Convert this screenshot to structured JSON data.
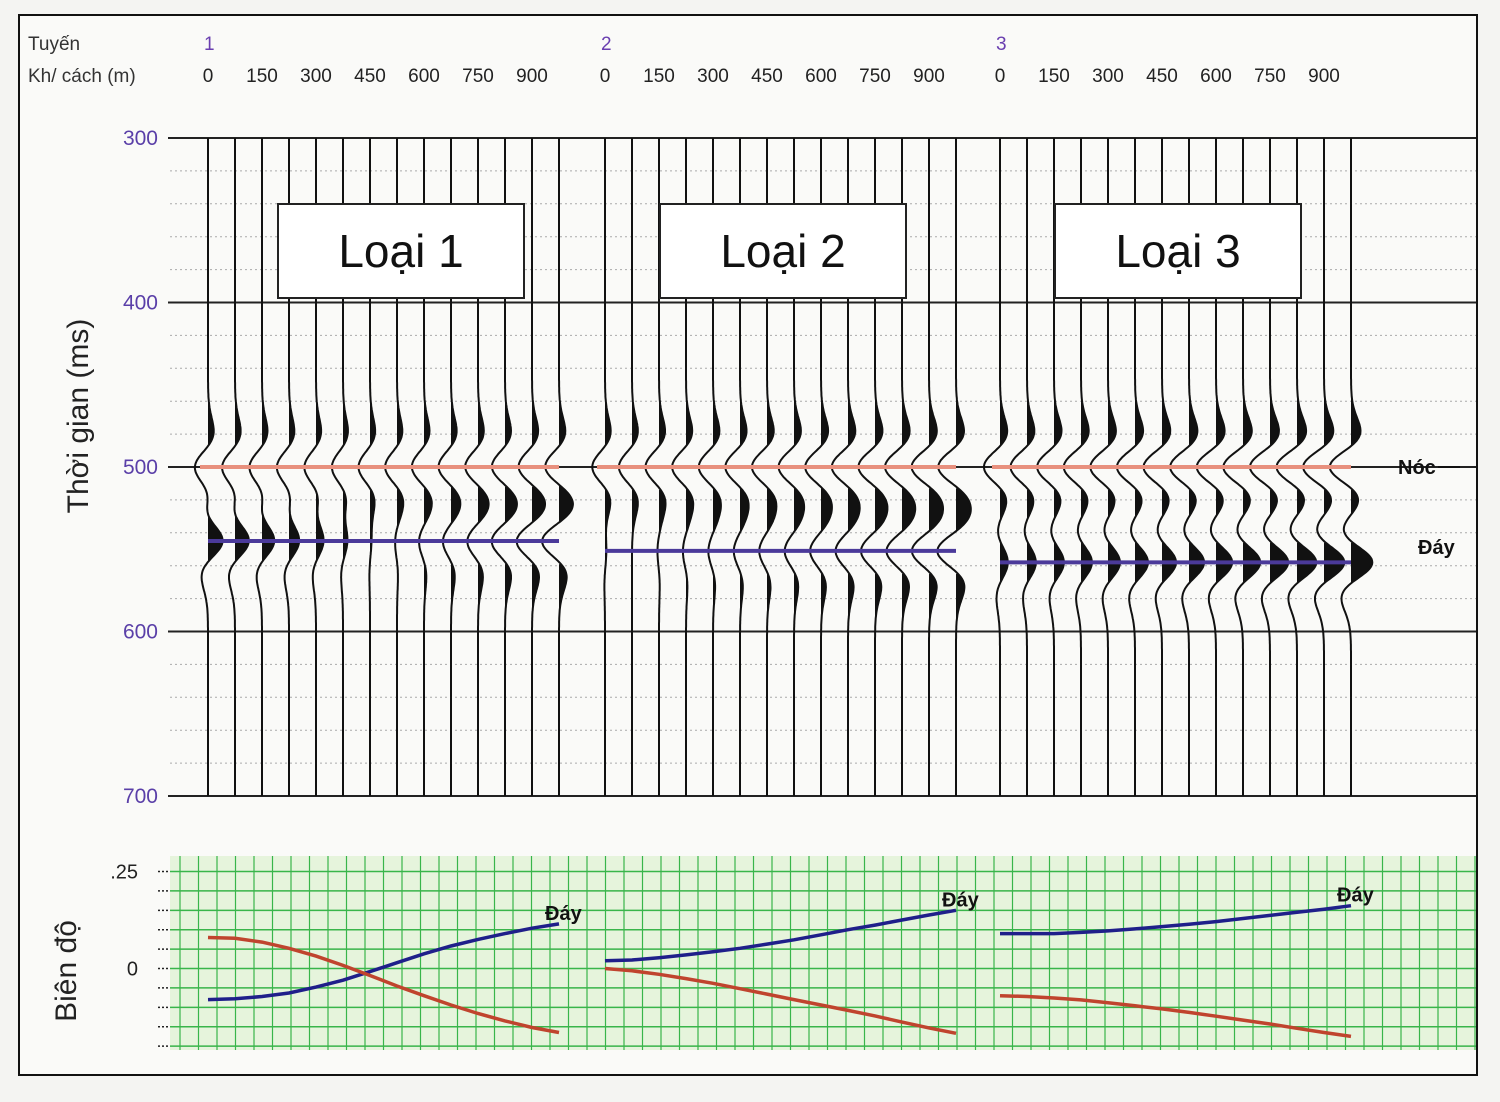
{
  "chart_data": {
    "type": "line",
    "header": {
      "line_label": "Tuyến",
      "offset_label": "Kh/ cách (m)",
      "line_numbers": [
        "1",
        "2",
        "3"
      ],
      "offset_ticks": [
        "0",
        "150",
        "300",
        "450",
        "600",
        "750",
        "900"
      ]
    },
    "seismic_panel": {
      "ylabel": "Thời gian (ms)",
      "y_ticks": [
        "300",
        "400",
        "500",
        "600",
        "700"
      ],
      "ylim": [
        300,
        700
      ],
      "y_inverted": true,
      "offsets_m": [
        0,
        75,
        150,
        225,
        300,
        375,
        450,
        525,
        600,
        675,
        750,
        825,
        900,
        975
      ],
      "top_horizon": {
        "label": "Nóc",
        "time_ms": 500,
        "color": "#e8907e"
      },
      "base_horizon": {
        "label": "Đáy",
        "color": "#4b3a9a"
      },
      "models": [
        {
          "name": "Loại 1",
          "base_time_ms": 545,
          "top_amp": [
            0.2,
            0.18,
            0.14,
            0.1,
            0.05,
            0.0,
            -0.05,
            -0.1,
            -0.14,
            -0.18,
            -0.22,
            -0.26,
            -0.3,
            -0.34
          ],
          "base_amp": [
            0.55,
            0.52,
            0.46,
            0.38,
            0.28,
            0.16,
            0.05,
            -0.08,
            -0.2,
            -0.32,
            -0.42,
            -0.52,
            -0.6,
            -0.66
          ]
        },
        {
          "name": "Loại 2",
          "base_time_ms": 551,
          "top_amp": [
            -0.06,
            -0.1,
            -0.14,
            -0.18,
            -0.22,
            -0.26,
            -0.3,
            -0.34,
            -0.38,
            -0.42,
            -0.46,
            -0.5,
            -0.54,
            -0.58
          ],
          "base_amp": [
            0.05,
            0.0,
            -0.06,
            -0.12,
            -0.18,
            -0.24,
            -0.3,
            -0.36,
            -0.42,
            -0.48,
            -0.54,
            -0.6,
            -0.66,
            -0.72
          ]
        },
        {
          "name": "Loại 3",
          "base_time_ms": 558,
          "top_amp": [
            -0.4,
            -0.44,
            -0.48,
            -0.52,
            -0.56,
            -0.6,
            -0.64,
            -0.68,
            -0.72,
            -0.76,
            -0.8,
            -0.84,
            -0.88,
            -0.92
          ],
          "base_amp": [
            0.3,
            0.34,
            0.38,
            0.42,
            0.46,
            0.5,
            0.54,
            0.58,
            0.62,
            0.66,
            0.7,
            0.74,
            0.78,
            0.82
          ]
        }
      ]
    },
    "amplitude_panel": {
      "ylabel": "Biên độ",
      "y_ticks": [
        ".25",
        "0"
      ],
      "ylim": [
        -0.21,
        0.29
      ],
      "background": "#e6f4dc",
      "grid_color": "#39b54a",
      "x_offsets_m": [
        0,
        75,
        150,
        225,
        300,
        375,
        450,
        525,
        600,
        675,
        750,
        825,
        900,
        975
      ],
      "series": [
        {
          "name": "Đáy",
          "model": "Loại 1",
          "color": "#1f1f8a",
          "values": [
            -0.08,
            -0.078,
            -0.072,
            -0.063,
            -0.048,
            -0.03,
            -0.008,
            0.015,
            0.038,
            0.058,
            0.075,
            0.09,
            0.104,
            0.115
          ]
        },
        {
          "model": "Loại 1",
          "color": "#c0442e",
          "values": [
            0.08,
            0.078,
            0.068,
            0.052,
            0.032,
            0.008,
            -0.018,
            -0.045,
            -0.07,
            -0.094,
            -0.116,
            -0.135,
            -0.152,
            -0.165
          ]
        },
        {
          "name": "Đáy",
          "model": "Loại 2",
          "color": "#1f1f8a",
          "values": [
            0.02,
            0.022,
            0.028,
            0.035,
            0.043,
            0.052,
            0.063,
            0.074,
            0.087,
            0.1,
            0.112,
            0.125,
            0.138,
            0.15
          ]
        },
        {
          "model": "Loại 2",
          "color": "#c0442e",
          "values": [
            0.0,
            -0.006,
            -0.015,
            -0.026,
            -0.038,
            -0.052,
            -0.066,
            -0.08,
            -0.094,
            -0.108,
            -0.122,
            -0.138,
            -0.153,
            -0.167
          ]
        },
        {
          "name": "Đáy",
          "model": "Loại 3",
          "color": "#1f1f8a",
          "values": [
            0.09,
            0.09,
            0.09,
            0.093,
            0.097,
            0.102,
            0.108,
            0.114,
            0.121,
            0.129,
            0.137,
            0.145,
            0.153,
            0.162
          ]
        },
        {
          "model": "Loại 3",
          "color": "#c0442e",
          "values": [
            -0.07,
            -0.072,
            -0.076,
            -0.081,
            -0.088,
            -0.096,
            -0.104,
            -0.113,
            -0.123,
            -0.133,
            -0.143,
            -0.154,
            -0.165,
            -0.175
          ]
        }
      ]
    }
  }
}
